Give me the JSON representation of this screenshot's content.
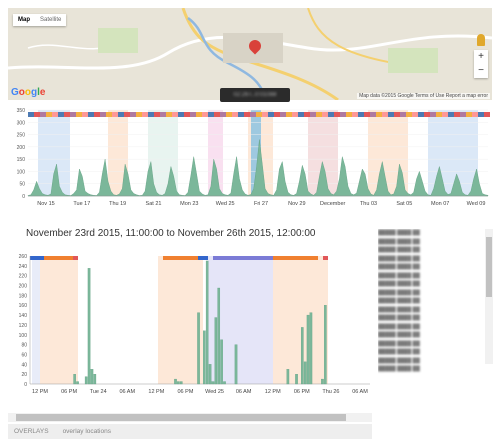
{
  "map": {
    "tab_map": "Map",
    "tab_satellite": "Satellite",
    "google_logo": "Google",
    "attribution": "Map data ©2015 Google   Terms of Use   Report a map error",
    "zoom_in": "+",
    "zoom_out": "−"
  },
  "tooltip": {
    "text": "02:26T..0:01088"
  },
  "overview": {
    "y_ticks": [
      "350",
      "300",
      "250",
      "200",
      "150",
      "100",
      "50",
      "0"
    ],
    "x_ticks": [
      "Nov 15",
      "Tue 17",
      "Thu 19",
      "Sat 21",
      "Mon 23",
      "Wed 25",
      "Fri 27",
      "Nov 29",
      "December",
      "Thu 03",
      "Sat 05",
      "Mon 07",
      "Wed 09"
    ]
  },
  "detail": {
    "title": "November 23rd 2015, 11:00:00 to November 26th 2015, 12:00:00",
    "y_ticks": [
      "260",
      "240",
      "220",
      "200",
      "180",
      "160",
      "140",
      "120",
      "100",
      "80",
      "60",
      "40",
      "20",
      "0"
    ],
    "x_ticks": [
      "12 PM",
      "06 PM",
      "Tue 24",
      "06 AM",
      "12 PM",
      "06 PM",
      "Wed 25",
      "06 AM",
      "12 PM",
      "06 PM",
      "Thu 26",
      "06 AM"
    ]
  },
  "chart_data": [
    {
      "type": "bar",
      "title": "",
      "xlabel": "",
      "ylabel": "",
      "ylim": [
        0,
        350
      ],
      "values": [
        2,
        5,
        25,
        60,
        30,
        10,
        5,
        3,
        8,
        90,
        130,
        40,
        15,
        5,
        3,
        2,
        10,
        25,
        110,
        80,
        20,
        10,
        5,
        3,
        2,
        15,
        90,
        150,
        60,
        20,
        5,
        3,
        8,
        30,
        130,
        90,
        25,
        10,
        5,
        2,
        3,
        20,
        100,
        140,
        50,
        15,
        5,
        3,
        10,
        50,
        120,
        80,
        20,
        5,
        3,
        2,
        15,
        85,
        160,
        90,
        20,
        8,
        3,
        5,
        40,
        150,
        110,
        30,
        10,
        5,
        3,
        12,
        90,
        160,
        70,
        25,
        8,
        3,
        6,
        30,
        120,
        230,
        130,
        30,
        10,
        5,
        3,
        25,
        110,
        140,
        60,
        15,
        5,
        3,
        10,
        60,
        125,
        90,
        20,
        8,
        3,
        15,
        80,
        140,
        100,
        30,
        10,
        5,
        20,
        70,
        160,
        120,
        40,
        10,
        5,
        12,
        60,
        110,
        90,
        30,
        8,
        3,
        25,
        90,
        140,
        80,
        20,
        5,
        8,
        40,
        130,
        95,
        25,
        10,
        5,
        15,
        70,
        100,
        60,
        20,
        5,
        3,
        30,
        80,
        120,
        70,
        20,
        6,
        10,
        50,
        90,
        60,
        15,
        5,
        3,
        20,
        70,
        110,
        50,
        10,
        5,
        3
      ],
      "x_ticks": [
        "Nov 15",
        "Tue 17",
        "Thu 19",
        "Sat 21",
        "Mon 23",
        "Wed 25",
        "Fri 27",
        "Nov 29",
        "December",
        "Thu 03",
        "Sat 05",
        "Mon 07",
        "Wed 09"
      ]
    },
    {
      "type": "bar",
      "title": "November 23rd 2015, 11:00:00 to November 26th 2015, 12:00:00",
      "xlabel": "",
      "ylabel": "",
      "ylim": [
        0,
        260
      ],
      "values": [
        0,
        0,
        0,
        0,
        0,
        0,
        0,
        0,
        0,
        0,
        0,
        0,
        0,
        0,
        0,
        20,
        5,
        0,
        0,
        15,
        235,
        30,
        20,
        0,
        0,
        0,
        0,
        0,
        0,
        0,
        0,
        0,
        0,
        0,
        0,
        0,
        0,
        0,
        0,
        0,
        0,
        0,
        0,
        0,
        0,
        0,
        0,
        0,
        0,
        0,
        10,
        5,
        5,
        0,
        0,
        0,
        0,
        0,
        145,
        0,
        108,
        250,
        40,
        5,
        135,
        195,
        90,
        5,
        0,
        0,
        0,
        80,
        0,
        0,
        0,
        0,
        0,
        0,
        0,
        0,
        0,
        0,
        0,
        0,
        0,
        0,
        0,
        0,
        0,
        30,
        0,
        0,
        20,
        0,
        115,
        45,
        140,
        145,
        0,
        0,
        0,
        10,
        160,
        0,
        0,
        0,
        0,
        0,
        0,
        0,
        0,
        0,
        0,
        0,
        0,
        0,
        0,
        0
      ]
    }
  ]
}
